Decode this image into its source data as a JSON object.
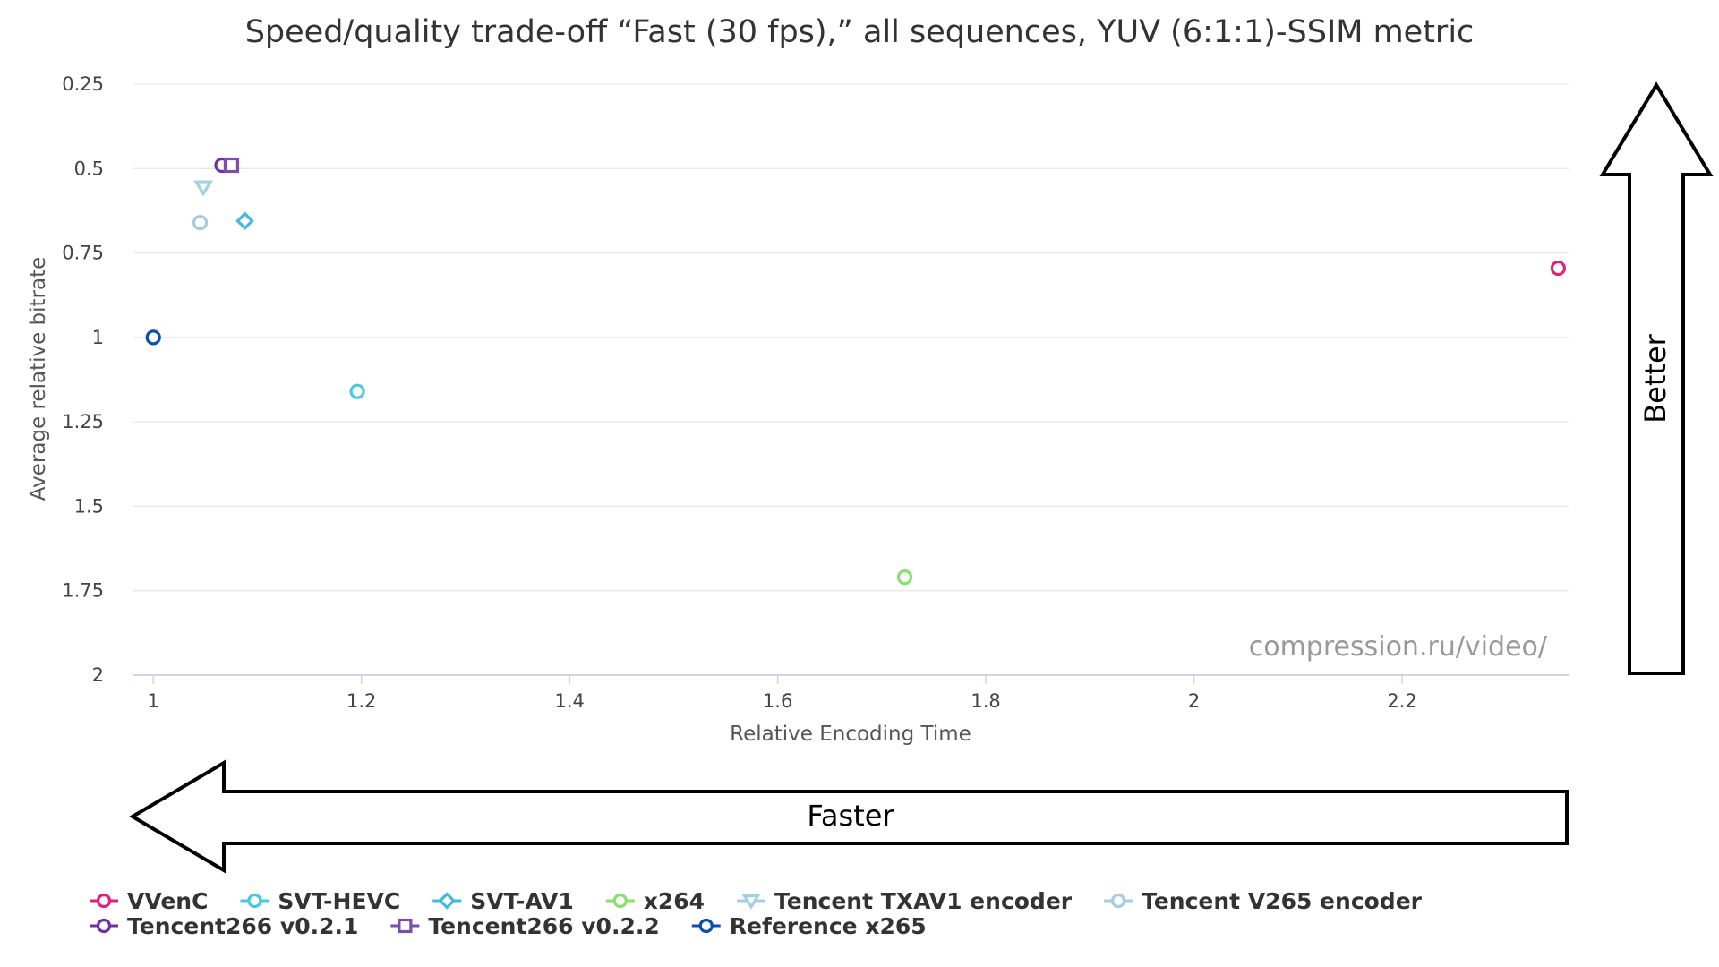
{
  "chart_data": {
    "type": "scatter",
    "title": "Speed/quality trade-off “Fast (30 fps),” all sequences, YUV (6:1:1)-SSIM metric",
    "xlabel": "Relative Encoding Time",
    "ylabel": "Average relative bitrate",
    "xlim": [
      0.98,
      2.36
    ],
    "ylim": [
      0.25,
      2
    ],
    "y_reversed": true,
    "x_ticks": [
      "1",
      "1.2",
      "1.4",
      "1.6",
      "1.8",
      "2",
      "2.2"
    ],
    "y_ticks": [
      "0.25",
      "0.5",
      "0.75",
      "1",
      "1.25",
      "1.5",
      "1.75",
      "2"
    ],
    "grid": "horizontal",
    "legend_position": "bottom",
    "series": [
      {
        "name": "VVenC",
        "marker": "circle",
        "color": "#e0217a",
        "points": [
          [
            2.35,
            0.795
          ]
        ]
      },
      {
        "name": "SVT-HEVC",
        "marker": "circle",
        "color": "#4ac8e0",
        "points": [
          [
            1.196,
            1.16
          ]
        ]
      },
      {
        "name": "SVT-AV1",
        "marker": "diamond",
        "color": "#44b8e0",
        "points": [
          [
            1.088,
            0.655
          ]
        ]
      },
      {
        "name": "x264",
        "marker": "circle",
        "color": "#88e070",
        "points": [
          [
            1.722,
            1.71
          ]
        ]
      },
      {
        "name": "Tencent TXAV1 encoder",
        "marker": "triangle-down",
        "color": "#a6cfe6",
        "points": [
          [
            1.048,
            0.555
          ]
        ]
      },
      {
        "name": "Tencent V265 encoder",
        "marker": "circle",
        "color": "#a6cce0",
        "points": [
          [
            1.045,
            0.66
          ]
        ]
      },
      {
        "name": "Tencent266 v0.2.1",
        "marker": "circle",
        "color": "#7030a0",
        "points": [
          [
            1.066,
            0.49
          ]
        ]
      },
      {
        "name": "Tencent266 v0.2.2",
        "marker": "square",
        "color": "#7b4fa6",
        "points": [
          [
            1.075,
            0.49
          ]
        ]
      },
      {
        "name": "Reference x265",
        "marker": "circle",
        "color": "#0a4fb0",
        "points": [
          [
            1.0,
            1.0
          ]
        ]
      }
    ]
  },
  "watermark": "compression.ru/video/",
  "arrows": {
    "faster": "Faster",
    "better": "Better"
  }
}
